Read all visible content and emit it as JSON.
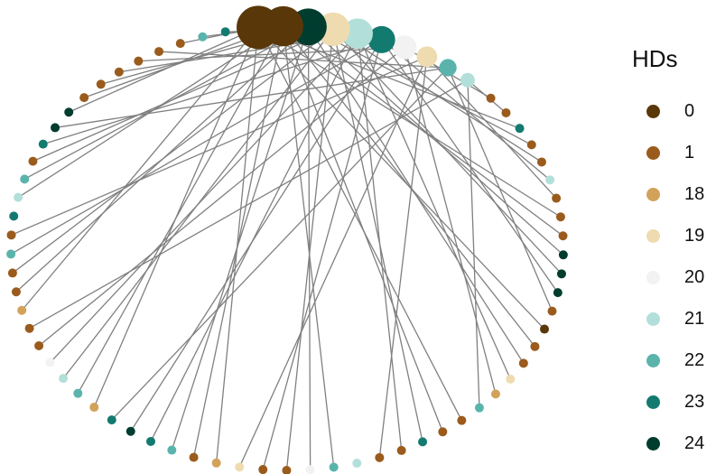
{
  "chart_data": {
    "type": "network",
    "title": "",
    "layout": "circle",
    "node_color_variable": "HDs",
    "legend": {
      "title": "HDs",
      "position": "right",
      "items": [
        {
          "label": "0",
          "color": "#5a3709"
        },
        {
          "label": "1",
          "color": "#9a5b1c"
        },
        {
          "label": "18",
          "color": "#d3a25a"
        },
        {
          "label": "19",
          "color": "#eedcb0"
        },
        {
          "label": "20",
          "color": "#f2f2f2"
        },
        {
          "label": "21",
          "color": "#b2dfda"
        },
        {
          "label": "22",
          "color": "#5ab4ac"
        },
        {
          "label": "23",
          "color": "#137a70"
        },
        {
          "label": "24",
          "color": "#013d2f"
        }
      ]
    },
    "hub_nodes": [
      "0",
      "0",
      "24",
      "19",
      "21",
      "23",
      "20",
      "19",
      "22",
      "21"
    ],
    "ring_nodes": [
      "1",
      "1",
      "23",
      "1",
      "1",
      "21",
      "1",
      "1",
      "1",
      "24",
      "24",
      "24",
      "1",
      "0",
      "1",
      "1",
      "19",
      "18",
      "22",
      "1",
      "1",
      "23",
      "1",
      "1",
      "21",
      "22",
      "20",
      "1",
      "1",
      "19",
      "18",
      "1",
      "22",
      "23",
      "24",
      "23",
      "18",
      "22",
      "21",
      "20",
      "1",
      "1",
      "18",
      "1",
      "1",
      "22",
      "1",
      "23",
      "21",
      "22",
      "1",
      "23",
      "24",
      "24",
      "1",
      "1",
      "1",
      "1",
      "1",
      "1",
      "22",
      "23",
      "1"
    ],
    "edges_per_hub": [
      9,
      9,
      8,
      8,
      6,
      6,
      4,
      4,
      4,
      3
    ]
  }
}
